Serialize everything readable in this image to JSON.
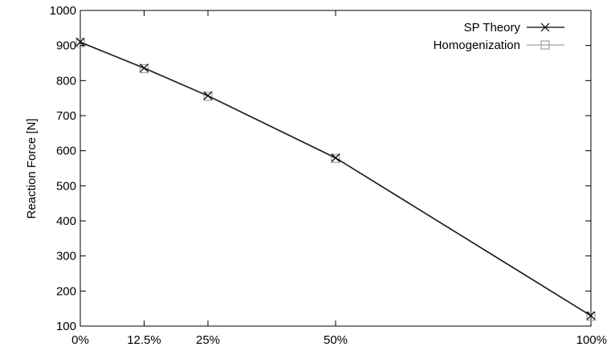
{
  "chart_data": {
    "type": "line",
    "ylabel": "Reaction Force [N]",
    "xlabel": "",
    "ylim": [
      100,
      1000
    ],
    "xlim": [
      0,
      100
    ],
    "grid": false,
    "legend_position": "top-right",
    "y_ticks": [
      100,
      200,
      300,
      400,
      500,
      600,
      700,
      800,
      900,
      1000
    ],
    "x_ticks": [
      {
        "value": 0,
        "label": "0%"
      },
      {
        "value": 12.5,
        "label": "12.5%"
      },
      {
        "value": 25,
        "label": "25%"
      },
      {
        "value": 50,
        "label": "50%"
      },
      {
        "value": 100,
        "label": "100%"
      }
    ],
    "x": [
      0,
      12.5,
      25,
      50,
      100
    ],
    "series": [
      {
        "name": "SP Theory",
        "values": [
          910,
          836,
          757,
          580,
          130
        ],
        "color": "#000000",
        "marker": "x"
      },
      {
        "name": "Homogenization",
        "values": [
          908,
          834,
          755,
          578,
          128
        ],
        "color": "#a0a0a0",
        "marker": "square"
      }
    ]
  }
}
